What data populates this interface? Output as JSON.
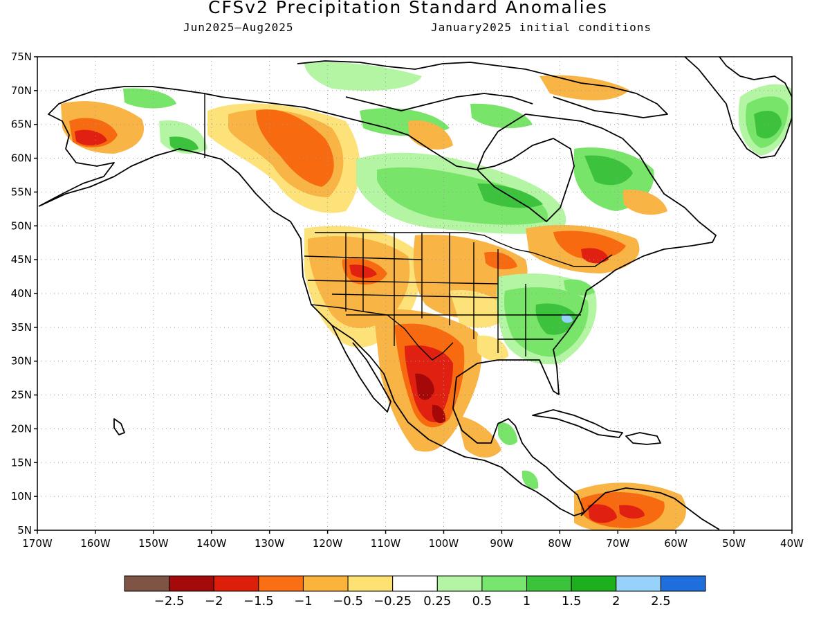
{
  "title": "CFSv2 Precipitation Standard Anomalies",
  "subtitle_left": "Jun2025–Aug2025",
  "subtitle_right": "January2025 initial conditions",
  "map": {
    "lon_range": [
      -170,
      -40
    ],
    "lat_range": [
      5,
      75
    ],
    "lat_ticks": [
      "75N",
      "70N",
      "65N",
      "60N",
      "55N",
      "50N",
      "45N",
      "40N",
      "35N",
      "30N",
      "25N",
      "20N",
      "15N",
      "10N",
      "5N"
    ],
    "lon_ticks": [
      "170W",
      "160W",
      "150W",
      "140W",
      "130W",
      "120W",
      "110W",
      "100W",
      "90W",
      "80W",
      "70W",
      "60W",
      "50W",
      "40W"
    ],
    "grid": true,
    "colors": {
      "green_light": "#b3f5a3",
      "green_mid": "#78e56a",
      "green_dark": "#3dc23d",
      "yellow": "#fde27a",
      "orange_light": "#f8b444",
      "orange": "#f76a10",
      "red": "#e02010",
      "dark_red": "#a40808",
      "blue_light": "#96d2fa"
    }
  },
  "colorbar": {
    "colors": [
      "#7e5545",
      "#a50a0a",
      "#dc1e0a",
      "#fa6e14",
      "#fab43c",
      "#fee173",
      "#ffffff",
      "#b4f5a5",
      "#78e66e",
      "#3cc33c",
      "#1eaf1e",
      "#96d2fa",
      "#1e6edc"
    ],
    "labels": [
      "−2.5",
      "−2",
      "−1.5",
      "−1",
      "−0.5",
      "−0.25",
      "0.25",
      "0.5",
      "1",
      "1.5",
      "2",
      "2.5"
    ]
  }
}
